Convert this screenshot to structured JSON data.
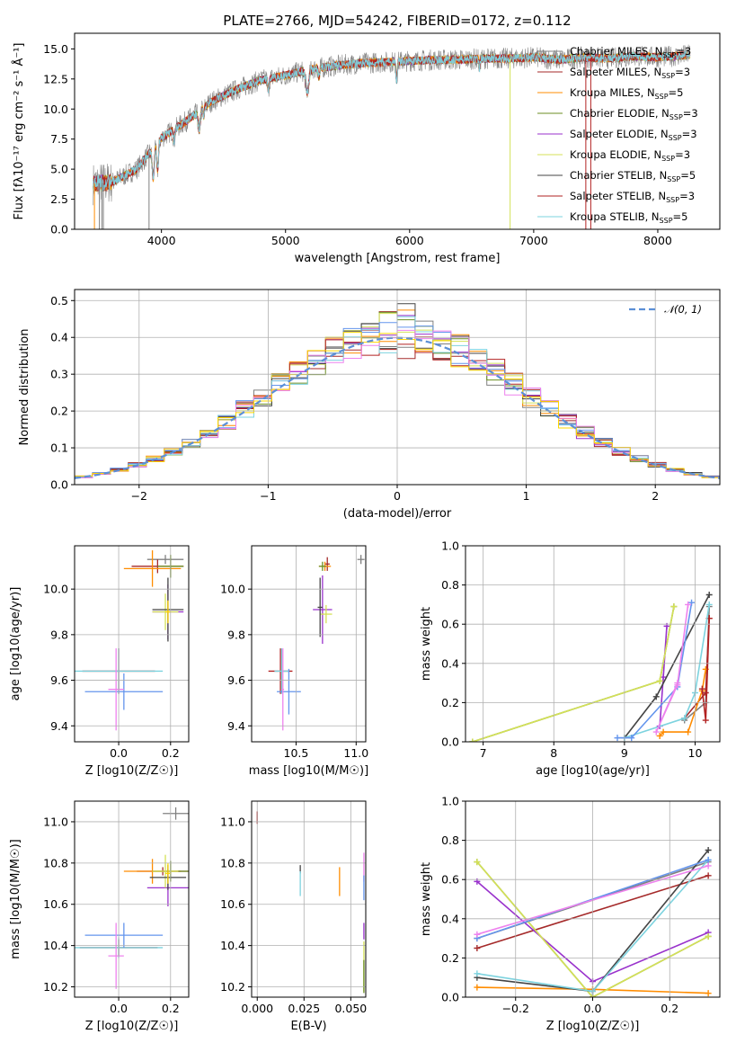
{
  "colors": [
    "#808080",
    "#a52a2a",
    "#ff8c00",
    "#6b8e23",
    "#9932cc",
    "#d4e157",
    "#444444",
    "#b22222",
    "#7dd3df",
    "#6495ed",
    "#ee82ee",
    "#ffd700"
  ],
  "chart_data": [
    {
      "id": "spectrum",
      "type": "line",
      "title": "PLATE=2766, MJD=54242, FIBERID=0172, z=0.112",
      "xlabel": "wavelength [Angstrom, rest frame]",
      "ylabel": "Flux [fλ10⁻¹⁷ erg cm⁻² s⁻¹ Å⁻¹]",
      "xlim": [
        3300,
        8500
      ],
      "ylim": [
        0,
        16.3
      ],
      "xticks": [
        "4000",
        "5000",
        "6000",
        "7000",
        "8000"
      ],
      "yticks": [
        "0.0",
        "2.5",
        "5.0",
        "7.5",
        "10.0",
        "12.5",
        "15.0"
      ],
      "legend": [
        "Chabrier MILES, N_SSP=3",
        "Salpeter MILES, N_SSP=3",
        "Kroupa MILES, N_SSP=5",
        "Chabrier ELODIE, N_SSP=3",
        "Salpeter ELODIE, N_SSP=3",
        "Kroupa ELODIE, N_SSP=3",
        "Chabrier STELIB, N_SSP=5",
        "Salpeter STELIB, N_SSP=3",
        "Kroupa STELIB, N_SSP=5"
      ],
      "continuum": {
        "x": [
          3450,
          3600,
          3800,
          4000,
          4200,
          4400,
          4600,
          4800,
          5000,
          5200,
          5400,
          5600,
          5800,
          6000,
          6200,
          6400,
          6600,
          6800,
          7000,
          7200,
          7400,
          7600,
          7800,
          8000,
          8250
        ],
        "y": [
          3.8,
          3.9,
          5.0,
          7.6,
          9.0,
          10.6,
          11.6,
          12.4,
          12.8,
          13.3,
          13.6,
          13.8,
          13.9,
          14.0,
          14.1,
          14.1,
          14.2,
          14.2,
          14.3,
          14.1,
          14.3,
          14.2,
          14.4,
          14.3,
          14.5
        ]
      }
    },
    {
      "id": "residuals",
      "type": "line",
      "xlabel": "(data-model)/error",
      "ylabel": "Normed distribution",
      "xlim": [
        -2.5,
        2.5
      ],
      "ylim": [
        0,
        0.53
      ],
      "xticks": [
        "−2",
        "−1",
        "0",
        "1",
        "2"
      ],
      "yticks": [
        "0.0",
        "0.1",
        "0.2",
        "0.3",
        "0.4",
        "0.5"
      ],
      "legend": [
        "𝒩(0, 1)"
      ]
    },
    {
      "id": "age-vs-Z",
      "type": "scatter",
      "xlabel": "Z [log10(Z/Z☉)]",
      "ylabel": "age [log10(age/yr)]",
      "xlim": [
        -0.17,
        0.27
      ],
      "ylim": [
        9.33,
        10.19
      ],
      "xticks": [
        "0.0",
        "0.2"
      ],
      "yticks": [
        "9.4",
        "9.6",
        "9.8",
        "10.0"
      ],
      "points": [
        {
          "x": 0.18,
          "y": 10.13,
          "xe": 0.07,
          "ye": 0.02
        },
        {
          "x": 0.15,
          "y": 10.1,
          "xe": 0.1,
          "ye": 0.03
        },
        {
          "x": 0.13,
          "y": 10.09,
          "xe": 0.11,
          "ye": 0.08
        },
        {
          "x": 0.2,
          "y": 10.1,
          "xe": 0.05,
          "ye": 0.05
        },
        {
          "x": 0.19,
          "y": 9.9,
          "xe": 0.06,
          "ye": 0.12
        },
        {
          "x": 0.18,
          "y": 9.9,
          "xe": 0.05,
          "ye": 0.08
        },
        {
          "x": 0.19,
          "y": 9.91,
          "xe": 0.06,
          "ye": 0.14
        },
        {
          "x": 0.0,
          "y": 9.64,
          "xe": 0.14,
          "ye": 0.1
        },
        {
          "x": 0.0,
          "y": 9.64,
          "xe": 0.17,
          "ye": 0.1
        },
        {
          "x": 0.02,
          "y": 9.55,
          "xe": 0.15,
          "ye": 0.08
        },
        {
          "x": -0.01,
          "y": 9.56,
          "xe": 0.03,
          "ye": 0.18
        },
        {
          "x": 0.19,
          "y": 9.9,
          "xe": 0.01,
          "ye": 0.05
        }
      ]
    },
    {
      "id": "age-vs-mass",
      "type": "scatter",
      "xlabel": "mass [log10(M/M☉)]",
      "ylabel": "",
      "xlim": [
        10.13,
        11.08
      ],
      "ylim": [
        9.33,
        10.19
      ],
      "xticks": [
        "10.5",
        "11.0"
      ],
      "yticks": [
        "9.4",
        "9.6",
        "9.8",
        "10.0"
      ],
      "points": [
        {
          "x": 11.04,
          "y": 10.13,
          "xe": 0.03,
          "ye": 0.02
        },
        {
          "x": 10.76,
          "y": 10.11,
          "xe": 0.02,
          "ye": 0.03
        },
        {
          "x": 10.74,
          "y": 10.1,
          "xe": 0.05,
          "ye": 0.02
        },
        {
          "x": 10.72,
          "y": 10.1,
          "xe": 0.03,
          "ye": 0.02
        },
        {
          "x": 10.72,
          "y": 9.91,
          "xe": 0.08,
          "ye": 0.15
        },
        {
          "x": 10.75,
          "y": 9.89,
          "xe": 0.05,
          "ye": 0.04
        },
        {
          "x": 10.7,
          "y": 9.92,
          "xe": 0.02,
          "ye": 0.13
        },
        {
          "x": 10.37,
          "y": 9.64,
          "xe": 0.1,
          "ye": 0.1
        },
        {
          "x": 10.38,
          "y": 9.64,
          "xe": 0.06,
          "ye": 0.1
        },
        {
          "x": 10.44,
          "y": 9.55,
          "xe": 0.1,
          "ye": 0.1
        },
        {
          "x": 10.39,
          "y": 9.56,
          "xe": 0.01,
          "ye": 0.18
        }
      ]
    },
    {
      "id": "mw-vs-age",
      "type": "line",
      "xlabel": "age [log10(age/yr)]",
      "ylabel": "mass weight",
      "xlim": [
        6.75,
        10.35
      ],
      "ylim": [
        0,
        1.0
      ],
      "xticks": [
        "7",
        "8",
        "9",
        "10"
      ],
      "yticks": [
        "0.0",
        "0.2",
        "0.4",
        "0.6",
        "0.8",
        "1.0"
      ],
      "series": [
        {
          "c": 0,
          "x": [
            9.85,
            10.15,
            10.2
          ],
          "y": [
            0.11,
            0.2,
            0.69
          ]
        },
        {
          "c": 1,
          "x": [
            9.85,
            10.15,
            10.2
          ],
          "y": [
            0.12,
            0.25,
            0.63
          ]
        },
        {
          "c": 2,
          "x": [
            9.5,
            9.55,
            9.9,
            10.1,
            10.15
          ],
          "y": [
            0.03,
            0.05,
            0.05,
            0.26,
            0.37
          ]
        },
        {
          "c": 3,
          "x": [
            6.85,
            9.5,
            9.7
          ],
          "y": [
            0.0,
            0.31,
            0.69
          ]
        },
        {
          "c": 4,
          "x": [
            9.5,
            9.55,
            9.6
          ],
          "y": [
            0.08,
            0.33,
            0.59
          ]
        },
        {
          "c": 5,
          "x": [
            6.85,
            9.5,
            9.7
          ],
          "y": [
            0.0,
            0.31,
            0.69
          ]
        },
        {
          "c": 6,
          "x": [
            9.0,
            9.45,
            10.2
          ],
          "y": [
            0.02,
            0.23,
            0.75
          ]
        },
        {
          "c": 7,
          "x": [
            10.1,
            10.15,
            10.2
          ],
          "y": [
            0.27,
            0.11,
            0.63
          ]
        },
        {
          "c": 8,
          "x": [
            9.0,
            9.85,
            10.0,
            10.2
          ],
          "y": [
            0.02,
            0.12,
            0.25,
            0.7
          ]
        },
        {
          "c": 9,
          "x": [
            8.9,
            9.1,
            9.75,
            9.95
          ],
          "y": [
            0.02,
            0.02,
            0.28,
            0.71
          ]
        },
        {
          "c": 10,
          "x": [
            9.75,
            9.45,
            9.75,
            9.9
          ],
          "y": [
            0.3,
            0.05,
            0.29,
            0.7
          ]
        }
      ]
    },
    {
      "id": "mass-vs-Z",
      "type": "scatter",
      "xlabel": "Z [log10(Z/Z☉)]",
      "ylabel": "mass [log10(M/M☉)]",
      "xlim": [
        -0.17,
        0.27
      ],
      "ylim": [
        10.15,
        11.1
      ],
      "xticks": [
        "0.0",
        "0.2"
      ],
      "yticks": [
        "10.2",
        "10.4",
        "10.6",
        "10.8",
        "11.0"
      ],
      "points": [
        {
          "x": 0.22,
          "y": 11.04,
          "xe": 0.05,
          "ye": 0.03
        },
        {
          "x": 0.17,
          "y": 10.76,
          "xe": 0.1,
          "ye": 0.02
        },
        {
          "x": 0.13,
          "y": 10.76,
          "xe": 0.11,
          "ye": 0.06
        },
        {
          "x": 0.2,
          "y": 10.76,
          "xe": 0.07,
          "ye": 0.05
        },
        {
          "x": 0.19,
          "y": 10.68,
          "xe": 0.08,
          "ye": 0.09
        },
        {
          "x": 0.18,
          "y": 10.76,
          "xe": 0.05,
          "ye": 0.08
        },
        {
          "x": 0.19,
          "y": 10.73,
          "xe": 0.07,
          "ye": 0.06
        },
        {
          "x": 0.0,
          "y": 10.39,
          "xe": 0.15,
          "ye": 0.04
        },
        {
          "x": 0.0,
          "y": 10.39,
          "xe": 0.17,
          "ye": 0.05
        },
        {
          "x": 0.02,
          "y": 10.45,
          "xe": 0.15,
          "ye": 0.06
        },
        {
          "x": -0.01,
          "y": 10.35,
          "xe": 0.03,
          "ye": 0.16
        },
        {
          "x": 0.19,
          "y": 10.75,
          "xe": 0.01,
          "ye": 0.05
        }
      ]
    },
    {
      "id": "mass-vs-EBV",
      "type": "scatter",
      "xlabel": "E(B-V)",
      "ylabel": "",
      "xlim": [
        -0.003,
        0.058
      ],
      "ylim": [
        10.15,
        11.1
      ],
      "xticks": [
        "0.000",
        "0.025",
        "0.050"
      ],
      "yticks": [
        "10.2",
        "10.4",
        "10.6",
        "10.8",
        "11.0"
      ],
      "points": [
        {
          "x": 0.0,
          "y": 11.02,
          "c": 7,
          "ye": 0.03
        },
        {
          "x": 0.023,
          "y": 10.77,
          "c": 6,
          "ye": 0.02
        },
        {
          "x": 0.023,
          "y": 10.7,
          "c": 8,
          "ye": 0.06
        },
        {
          "x": 0.044,
          "y": 10.71,
          "c": 2,
          "ye": 0.07
        },
        {
          "x": 0.057,
          "y": 10.78,
          "c": 10,
          "ye": 0.07
        },
        {
          "x": 0.057,
          "y": 10.68,
          "c": 9,
          "ye": 0.06
        },
        {
          "x": 0.057,
          "y": 10.47,
          "c": 4,
          "ye": 0.04
        },
        {
          "x": 0.057,
          "y": 10.3,
          "c": 5,
          "ye": 0.12
        },
        {
          "x": 0.057,
          "y": 10.25,
          "c": 3,
          "ye": 0.08
        }
      ]
    },
    {
      "id": "mw-vs-Z",
      "type": "line",
      "xlabel": "Z [log10(Z/Z☉)]",
      "ylabel": "mass weight",
      "xlim": [
        -0.33,
        0.33
      ],
      "ylim": [
        0,
        1.0
      ],
      "xticks": [
        "−0.2",
        "0.0",
        "0.2"
      ],
      "yticks": [
        "0.0",
        "0.2",
        "0.4",
        "0.6",
        "0.8",
        "1.0"
      ],
      "series": [
        {
          "c": 0,
          "x": [
            -0.3,
            0.3
          ],
          "y": [
            0.3,
            0.69
          ]
        },
        {
          "c": 1,
          "x": [
            -0.3,
            0.3
          ],
          "y": [
            0.25,
            0.62
          ]
        },
        {
          "c": 2,
          "x": [
            -0.3,
            0.0,
            0.3
          ],
          "y": [
            0.05,
            0.04,
            0.02
          ]
        },
        {
          "c": 3,
          "x": [
            -0.3,
            0.0,
            0.3
          ],
          "y": [
            0.69,
            0.0,
            0.31
          ]
        },
        {
          "c": 4,
          "x": [
            -0.3,
            0.0,
            0.3
          ],
          "y": [
            0.59,
            0.08,
            0.33
          ]
        },
        {
          "c": 5,
          "x": [
            -0.3,
            0.0,
            0.3
          ],
          "y": [
            0.69,
            0.0,
            0.31
          ]
        },
        {
          "c": 6,
          "x": [
            -0.3,
            0.0,
            0.3
          ],
          "y": [
            0.1,
            0.03,
            0.75
          ]
        },
        {
          "c": 8,
          "x": [
            -0.3,
            0.0,
            0.3
          ],
          "y": [
            0.12,
            0.03,
            0.7
          ]
        },
        {
          "c": 9,
          "x": [
            -0.3,
            0.3
          ],
          "y": [
            0.3,
            0.7
          ]
        },
        {
          "c": 10,
          "x": [
            -0.3,
            0.3
          ],
          "y": [
            0.32,
            0.67
          ]
        }
      ]
    }
  ]
}
